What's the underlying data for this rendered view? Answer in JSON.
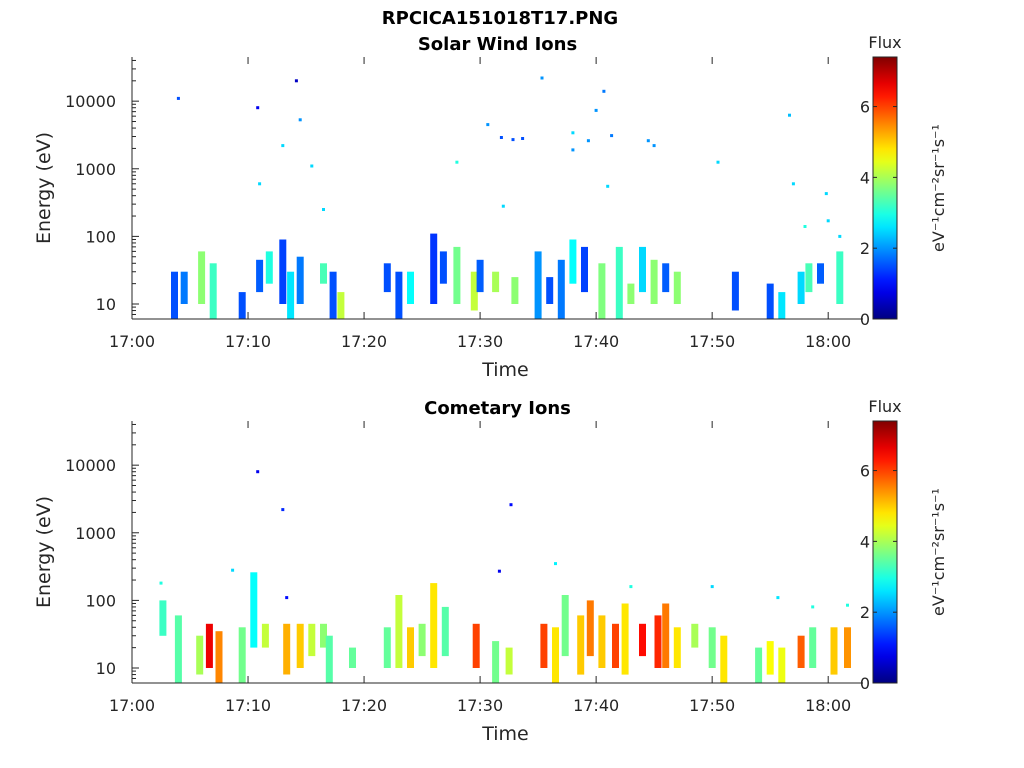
{
  "figure_title": "RPCICA151018T17.PNG",
  "colorbar": {
    "label": "Flux",
    "unit": "eV⁻¹cm⁻²sr⁻¹s⁻¹",
    "min": 0,
    "max": 7.4,
    "ticks": [
      "0",
      "2",
      "4",
      "6"
    ],
    "colormap": "jet"
  },
  "chart_data": [
    {
      "type": "heatmap",
      "title": "Solar Wind Ions",
      "xlabel": "Time",
      "ylabel": "Energy (eV)",
      "xlim": [
        "17:00",
        "18:03"
      ],
      "ylim": [
        6,
        45000
      ],
      "yscale": "log",
      "xticks": [
        "17:00",
        "17:10",
        "17:20",
        "17:30",
        "17:40",
        "17:50",
        "18:00"
      ],
      "yticks": [
        "10",
        "100",
        "1000",
        "10000"
      ],
      "points": [
        [
          "17:04",
          11000,
          1.5
        ],
        [
          "17:10:50",
          8000,
          0.8
        ],
        [
          "17:11",
          600,
          2.5
        ],
        [
          "17:13",
          2200,
          2.5
        ],
        [
          "17:14:10",
          20000,
          0.5
        ],
        [
          "17:14:30",
          5300,
          2.0
        ],
        [
          "17:15:30",
          1100,
          2.5
        ],
        [
          "17:16:30",
          250,
          2.5
        ],
        [
          "17:28",
          1250,
          3.0
        ],
        [
          "17:30:40",
          4500,
          2.0
        ],
        [
          "17:31:50",
          2900,
          1.5
        ],
        [
          "17:32:50",
          2700,
          1.5
        ],
        [
          "17:33:40",
          2800,
          1.5
        ],
        [
          "17:32",
          280,
          2.5
        ],
        [
          "17:35:20",
          22000,
          2.0
        ],
        [
          "17:38",
          3400,
          2.5
        ],
        [
          "17:38",
          1900,
          2.0
        ],
        [
          "17:39:20",
          2600,
          2.0
        ],
        [
          "17:40",
          7300,
          2.0
        ],
        [
          "17:40:40",
          14000,
          1.8
        ],
        [
          "17:41:20",
          3100,
          1.8
        ],
        [
          "17:41",
          550,
          2.5
        ],
        [
          "17:44:30",
          2600,
          2.0
        ],
        [
          "17:45",
          2200,
          2.0
        ],
        [
          "17:50:30",
          1250,
          2.5
        ],
        [
          "17:56:40",
          6200,
          2.3
        ],
        [
          "17:57",
          600,
          2.5
        ],
        [
          "17:58",
          140,
          3.0
        ],
        [
          "17:59:50",
          430,
          2.5
        ],
        [
          "18:00",
          170,
          2.5
        ],
        [
          "18:01",
          100,
          2.5
        ]
      ],
      "bands": [
        [
          "17:03:40",
          6,
          30,
          1.5
        ],
        [
          "17:04:30",
          10,
          30,
          1.8
        ],
        [
          "17:06",
          10,
          60,
          3.8
        ],
        [
          "17:07",
          6,
          40,
          3.2
        ],
        [
          "17:09:30",
          6,
          15,
          1.5
        ],
        [
          "17:11",
          15,
          45,
          1.6
        ],
        [
          "17:11:50",
          20,
          60,
          3.0
        ],
        [
          "17:13",
          10,
          90,
          1.4
        ],
        [
          "17:13:40",
          6,
          30,
          2.6
        ],
        [
          "17:14:30",
          10,
          50,
          1.8
        ],
        [
          "17:16:30",
          20,
          40,
          3.3
        ],
        [
          "17:17:20",
          6,
          30,
          1.5
        ],
        [
          "17:18",
          6,
          15,
          4.2
        ],
        [
          "17:22",
          15,
          40,
          1.5
        ],
        [
          "17:23",
          6,
          30,
          1.5
        ],
        [
          "17:24",
          10,
          30,
          2.8
        ],
        [
          "17:26",
          10,
          110,
          1.3
        ],
        [
          "17:26:50",
          20,
          60,
          1.5
        ],
        [
          "17:28",
          10,
          70,
          3.6
        ],
        [
          "17:29:30",
          8,
          30,
          4.2
        ],
        [
          "17:30",
          15,
          45,
          1.6
        ],
        [
          "17:31:20",
          15,
          30,
          4.0
        ],
        [
          "17:33",
          10,
          25,
          3.8
        ],
        [
          "17:35",
          6,
          60,
          2.0
        ],
        [
          "17:36",
          10,
          25,
          1.5
        ],
        [
          "17:37",
          6,
          45,
          1.8
        ],
        [
          "17:38",
          20,
          90,
          2.8
        ],
        [
          "17:39",
          15,
          70,
          1.4
        ],
        [
          "17:40:30",
          6,
          40,
          3.7
        ],
        [
          "17:42",
          6,
          70,
          3.2
        ],
        [
          "17:43",
          10,
          20,
          3.8
        ],
        [
          "17:44",
          15,
          70,
          2.5
        ],
        [
          "17:45",
          10,
          45,
          3.8
        ],
        [
          "17:46",
          15,
          40,
          1.6
        ],
        [
          "17:47",
          10,
          30,
          3.8
        ],
        [
          "17:52",
          8,
          30,
          1.5
        ],
        [
          "17:55",
          6,
          20,
          1.5
        ],
        [
          "17:56",
          6,
          15,
          2.6
        ],
        [
          "17:57:40",
          10,
          30,
          2.5
        ],
        [
          "17:58:20",
          15,
          40,
          3.3
        ],
        [
          "17:59:20",
          20,
          40,
          1.6
        ],
        [
          "18:01",
          10,
          60,
          3.2
        ]
      ]
    },
    {
      "type": "heatmap",
      "title": "Cometary Ions",
      "xlabel": "Time",
      "ylabel": "Energy (eV)",
      "xlim": [
        "17:00",
        "18:03"
      ],
      "ylim": [
        6,
        45000
      ],
      "yscale": "log",
      "xticks": [
        "17:00",
        "17:10",
        "17:20",
        "17:30",
        "17:40",
        "17:50",
        "18:00"
      ],
      "yticks": [
        "10",
        "100",
        "1000",
        "10000"
      ],
      "points": [
        [
          "17:10:50",
          8000,
          0.8
        ],
        [
          "17:13",
          2200,
          1.2
        ],
        [
          "17:32:40",
          2600,
          1.0
        ],
        [
          "17:31:40",
          270,
          0.8
        ],
        [
          "17:02:30",
          180,
          3.0
        ],
        [
          "17:13:20",
          110,
          1.0
        ],
        [
          "17:08:40",
          280,
          2.5
        ],
        [
          "17:36:30",
          350,
          2.7
        ],
        [
          "17:50",
          160,
          2.5
        ],
        [
          "17:55:40",
          110,
          2.6
        ],
        [
          "17:58:40",
          80,
          3.0
        ],
        [
          "18:01:40",
          85,
          3.0
        ],
        [
          "17:43",
          160,
          3.0
        ]
      ],
      "bands": [
        [
          "17:02:40",
          30,
          100,
          3.2
        ],
        [
          "17:04",
          6,
          60,
          3.4
        ],
        [
          "17:05:50",
          8,
          30,
          4.0
        ],
        [
          "17:06:40",
          10,
          45,
          6.6
        ],
        [
          "17:07:30",
          6,
          35,
          5.5
        ],
        [
          "17:09:30",
          6,
          40,
          3.6
        ],
        [
          "17:10:30",
          20,
          260,
          2.8
        ],
        [
          "17:11:30",
          20,
          45,
          4.2
        ],
        [
          "17:13:20",
          8,
          45,
          5.2
        ],
        [
          "17:14:30",
          10,
          45,
          5.0
        ],
        [
          "17:15:30",
          15,
          45,
          4.2
        ],
        [
          "17:16:30",
          20,
          45,
          3.8
        ],
        [
          "17:17",
          6,
          30,
          3.4
        ],
        [
          "17:19",
          10,
          20,
          3.5
        ],
        [
          "17:22",
          10,
          40,
          3.5
        ],
        [
          "17:23",
          10,
          120,
          4.2
        ],
        [
          "17:24",
          10,
          40,
          5.0
        ],
        [
          "17:25",
          15,
          45,
          3.8
        ],
        [
          "17:26",
          10,
          180,
          4.8
        ],
        [
          "17:27",
          15,
          80,
          3.4
        ],
        [
          "17:29:40",
          10,
          45,
          6.0
        ],
        [
          "17:31:20",
          6,
          25,
          3.6
        ],
        [
          "17:32:30",
          8,
          20,
          4.2
        ],
        [
          "17:35:30",
          10,
          45,
          6.0
        ],
        [
          "17:36:30",
          6,
          40,
          4.8
        ],
        [
          "17:37:20",
          15,
          120,
          3.6
        ],
        [
          "17:38:40",
          8,
          60,
          5.0
        ],
        [
          "17:39:30",
          15,
          100,
          5.6
        ],
        [
          "17:40:30",
          10,
          60,
          5.0
        ],
        [
          "17:41:40",
          10,
          45,
          6.0
        ],
        [
          "17:42:30",
          8,
          90,
          4.8
        ],
        [
          "17:44",
          15,
          45,
          6.4
        ],
        [
          "17:45:20",
          10,
          60,
          6.2
        ],
        [
          "17:46",
          10,
          90,
          5.6
        ],
        [
          "17:47",
          10,
          40,
          4.8
        ],
        [
          "17:48:30",
          20,
          45,
          4.0
        ],
        [
          "17:50",
          10,
          40,
          3.6
        ],
        [
          "17:51",
          6,
          30,
          4.8
        ],
        [
          "17:54",
          6,
          20,
          3.5
        ],
        [
          "17:55",
          8,
          25,
          4.6
        ],
        [
          "17:56",
          6,
          20,
          4.5
        ],
        [
          "17:57:40",
          10,
          30,
          5.8
        ],
        [
          "17:58:40",
          10,
          40,
          3.5
        ],
        [
          "18:00:30",
          8,
          40,
          5.0
        ],
        [
          "18:01:40",
          10,
          40,
          5.4
        ]
      ]
    }
  ]
}
